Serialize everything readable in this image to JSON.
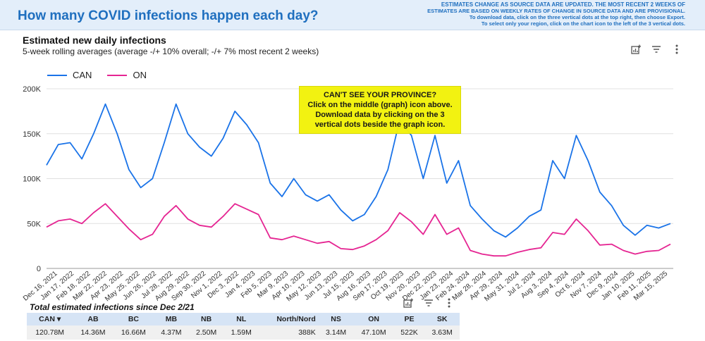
{
  "header": {
    "title": "How many COVID infections happen each day?",
    "note_line1": "ESTIMATES CHANGE AS SOURCE DATA ARE UPDATED. THE MOST RECENT 2 WEEKS OF",
    "note_line2": "ESTIMATES ARE BASED ON WEEKLY RATES OF CHANGE IN SOURCE DATA AND ARE PROVISIONAL.",
    "note_line3": "To download data, click on the three vertical dots at the top right, then choose Export.",
    "note_line4": "To select only your region, click on the chart icon to the left of the 3 vertical dots."
  },
  "callout": {
    "line1": "CAN'T SEE YOUR PROVINCE?",
    "line2": "Click on the  middle (graph) icon above.",
    "line3": "Download data by clicking on the 3",
    "line4": "vertical dots beside the graph icon."
  },
  "table": {
    "title": "Total estimated infections since Dec 2/21",
    "headers": [
      "CAN ▾",
      "AB",
      "BC",
      "MB",
      "NB",
      "NL",
      "North/Nord",
      "NS",
      "ON",
      "PE",
      "SK"
    ],
    "values": [
      "120.78M",
      "14.36M",
      "16.66M",
      "4.37M",
      "2.50M",
      "1.59M",
      "388K",
      "3.14M",
      "47.10M",
      "522K",
      "3.63M"
    ]
  },
  "icons": {
    "chart_icon": "chart-settings-icon",
    "filter_icon": "filter-icon",
    "menu_icon": "more-vertical-icon"
  },
  "colors": {
    "CAN": "#1a73e8",
    "ON": "#e52592",
    "callout": "#f2f20a",
    "header_bg": "#e3eefa"
  },
  "chart_data": {
    "type": "line",
    "title": "Estimated new daily infections",
    "subtitle": "5-week rolling averages (average -/+ 10% overall; -/+ 7% most recent 2 weeks)",
    "ylim": [
      0,
      200000
    ],
    "y_ticks": [
      "0",
      "50K",
      "100K",
      "150K",
      "200K"
    ],
    "x_ticks": [
      "Dec 16, 2021",
      "Jan 17, 2022",
      "Feb 18, 2022",
      "Mar 22, 2022",
      "Apr 23, 2022",
      "May 25, 2022",
      "Jun 26, 2022",
      "Jul 28, 2022",
      "Aug 29, 2022",
      "Sep 30, 2022",
      "Nov 1, 2022",
      "Dec 3, 2022",
      "Jan 4, 2023",
      "Feb 5, 2023",
      "Mar 9, 2023",
      "Apr 10, 2023",
      "May 12, 2023",
      "Jun 13, 2023",
      "Jul 15, 2023",
      "Aug 16, 2023",
      "Sep 17, 2023",
      "Oct 19, 2023",
      "Nov 20, 2023",
      "Dec 22, 2023",
      "Jan 23, 2024",
      "Feb 24, 2024",
      "Mar 28, 2024",
      "Apr 29, 2024",
      "May 31, 2024",
      "Jul 2, 2024",
      "Aug 3, 2024",
      "Sep 4, 2024",
      "Oct 6, 2024",
      "Nov 7, 2024",
      "Dec 9, 2024",
      "Jan 10, 2025",
      "Feb 11, 2025",
      "Mar 15, 2025"
    ],
    "legend_position": "top-left",
    "grid": true,
    "series": [
      {
        "name": "CAN",
        "values": [
          115000,
          138000,
          140000,
          122000,
          150000,
          183000,
          150000,
          110000,
          90000,
          100000,
          140000,
          183000,
          150000,
          135000,
          125000,
          145000,
          175000,
          160000,
          140000,
          95000,
          80000,
          100000,
          82000,
          75000,
          82000,
          65000,
          53000,
          60000,
          80000,
          110000,
          165000,
          148000,
          100000,
          148000,
          95000,
          120000,
          70000,
          55000,
          42000,
          35000,
          45000,
          58000,
          65000,
          120000,
          100000,
          148000,
          120000,
          85000,
          70000,
          48000,
          37000,
          48000,
          45000,
          50000
        ]
      },
      {
        "name": "ON",
        "values": [
          46000,
          53000,
          55000,
          50000,
          62000,
          72000,
          58000,
          44000,
          32000,
          38000,
          58000,
          70000,
          55000,
          48000,
          46000,
          58000,
          72000,
          66000,
          60000,
          34000,
          32000,
          36000,
          32000,
          28000,
          30000,
          22000,
          21000,
          25000,
          32000,
          42000,
          62000,
          52000,
          38000,
          60000,
          38000,
          45000,
          20000,
          16000,
          14000,
          14000,
          18000,
          21000,
          23000,
          40000,
          38000,
          55000,
          42000,
          26000,
          27000,
          20000,
          16000,
          19000,
          20000,
          27000
        ]
      }
    ]
  }
}
